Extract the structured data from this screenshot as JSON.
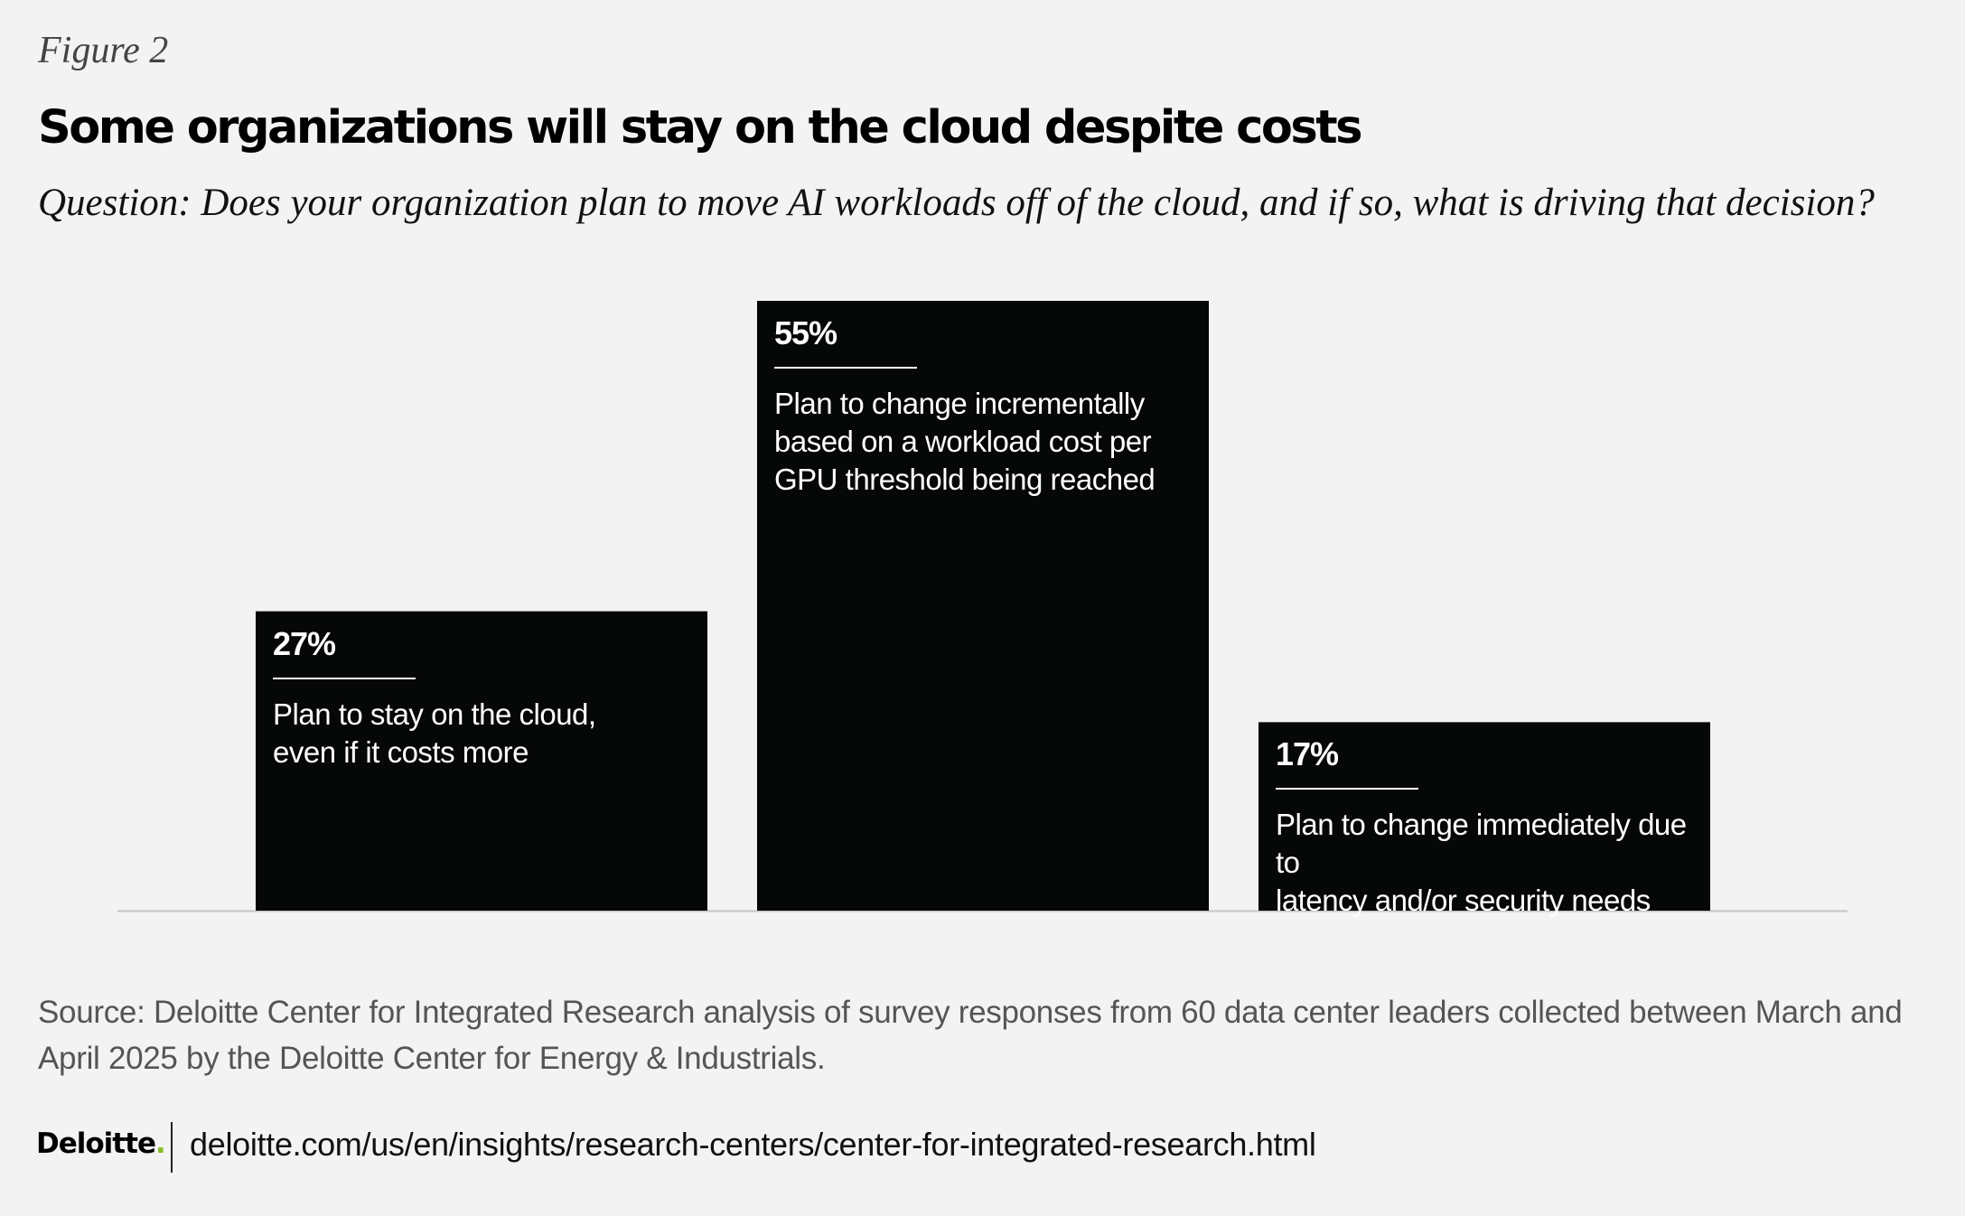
{
  "figure_label": "Figure 2",
  "title": "Some organizations will stay on the cloud despite costs",
  "subtitle": "Question: Does your organization plan to move AI workloads off of the cloud, and if so, what is driving that decision?",
  "chart_data": {
    "type": "bar",
    "categories": [
      "Plan to stay on the cloud, even if it costs more",
      "Plan to change incrementally based on a workload cost per GPU threshold being reached",
      "Plan to change immediately due to latency and/or security needs"
    ],
    "values": [
      27,
      55,
      17
    ],
    "value_labels": [
      "27%",
      "55%",
      "17%"
    ],
    "label_lines": [
      [
        "Plan to stay on the cloud,",
        "even if it costs more"
      ],
      [
        "Plan to change incrementally",
        "based on a workload cost per",
        "GPU threshold being reached"
      ],
      [
        "Plan to change immediately due to",
        "latency and/or security needs"
      ]
    ],
    "unit": "%",
    "ylim": [
      0,
      55
    ],
    "grid": false,
    "bar_color": "#050807"
  },
  "source": "Source: Deloitte Center for Integrated Research analysis of survey responses from 60 data center leaders collected between March and April 2025 by the Deloitte Center for Energy & Industrials.",
  "footer": {
    "logo_text": "Deloitte",
    "logo_dot": ".",
    "url": "deloitte.com/us/en/insights/research-centers/center-for-integrated-research.html"
  }
}
